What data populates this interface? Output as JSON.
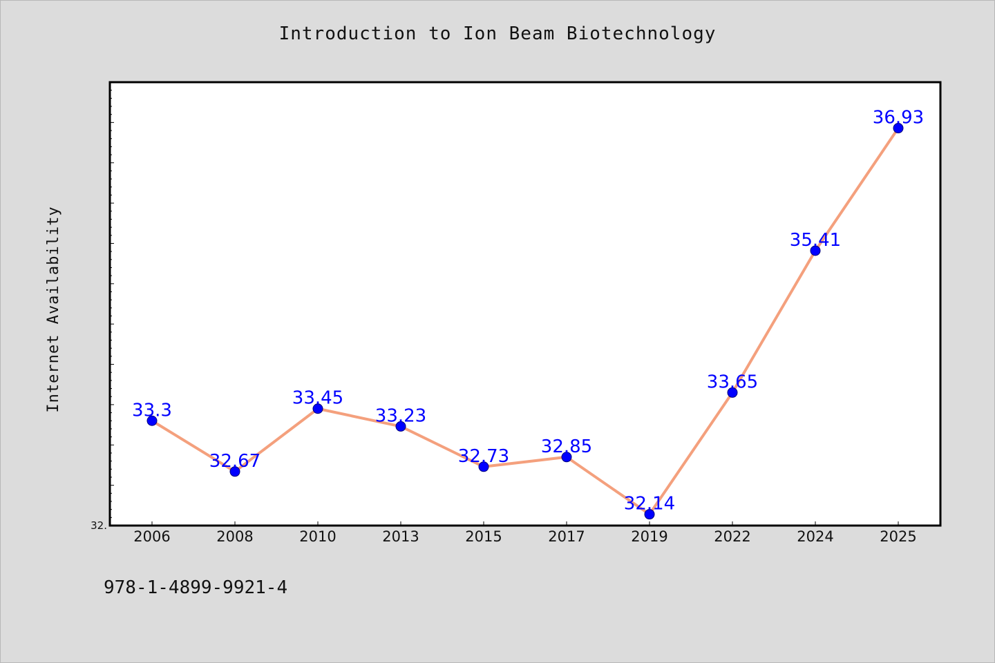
{
  "isbn": "978-1-4899-9921-4",
  "chart_data": {
    "type": "line",
    "title": "Introduction to Ion Beam Biotechnology",
    "xlabel": "",
    "ylabel": "Internet Availability",
    "categories": [
      "2006",
      "2008",
      "2010",
      "2013",
      "2015",
      "2017",
      "2019",
      "2022",
      "2024",
      "2025"
    ],
    "series": [
      {
        "values": [
          33.3,
          32.67,
          33.45,
          33.23,
          32.73,
          32.85,
          32.14,
          33.65,
          35.41,
          36.93
        ],
        "data_labels": [
          "33.3",
          "32.67",
          "33.45",
          "33.23",
          "32.73",
          "32.85",
          "32.14",
          "33.65",
          "35.41",
          "36.93"
        ]
      }
    ],
    "ylim": [
      32.0,
      37.5
    ],
    "y_tick_label": "32.",
    "grid": false,
    "legend": "none",
    "colors": {
      "line": "#f4a07d",
      "marker": "#0000ff",
      "marker_edge": "#00007a",
      "data_label": "#0000ff",
      "plot_background": "#ffffff",
      "page_background": "#dcdcdc"
    }
  }
}
